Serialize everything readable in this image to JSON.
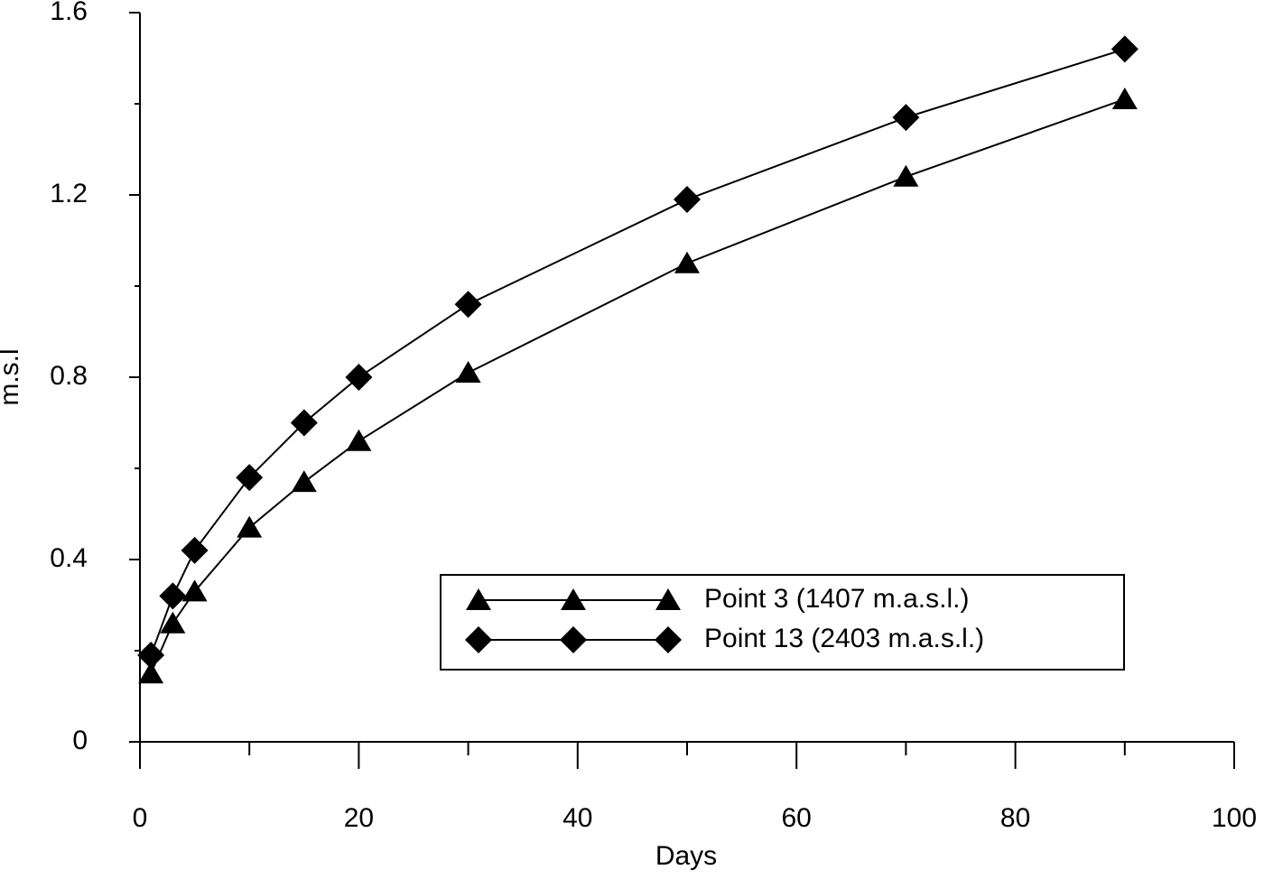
{
  "chart_data": {
    "type": "line",
    "x_label": "Days",
    "y_label": "m.s.l",
    "x": [
      1,
      3,
      5,
      10,
      15,
      20,
      30,
      50,
      70,
      90
    ],
    "series": [
      {
        "name": "Point 3 (1407 m.a.s.l.)",
        "color": "#000000",
        "marker": "triangle",
        "values": [
          0.15,
          0.26,
          0.33,
          0.47,
          0.57,
          0.66,
          0.81,
          1.05,
          1.24,
          1.41
        ]
      },
      {
        "name": "Point 13 (2403 m.a.s.l.)",
        "color": "#000000",
        "marker": "diamond",
        "values": [
          0.19,
          0.32,
          0.42,
          0.58,
          0.7,
          0.8,
          0.96,
          1.19,
          1.37,
          1.52
        ]
      }
    ],
    "xlim": [
      0,
      100
    ],
    "xticks": [
      0,
      20,
      40,
      60,
      80,
      100
    ],
    "xminorticks": [
      10,
      30,
      50,
      70,
      90
    ],
    "ylim": [
      0,
      1.6
    ],
    "yticks": [
      0,
      0.4,
      0.8,
      1.2,
      1.6
    ],
    "yminorticks": [
      0.2,
      0.6,
      1.0,
      1.4
    ],
    "grid": false
  }
}
